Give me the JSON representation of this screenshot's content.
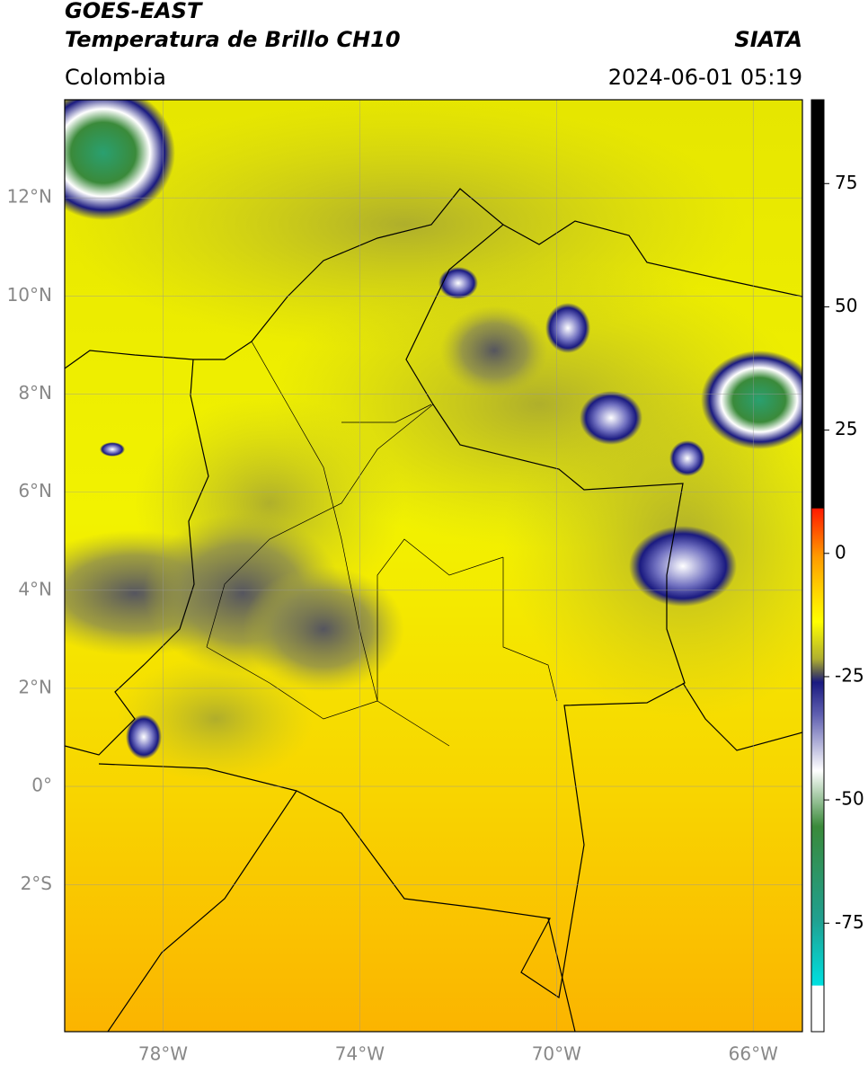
{
  "header": {
    "satellite": "GOES-EAST",
    "product": "Temperatura de Brillo CH10",
    "organization": "SIATA",
    "region": "Colombia",
    "datetime": "2024-06-01 05:19"
  },
  "map": {
    "lonlim": [
      -80,
      -65
    ],
    "latlim": [
      -5,
      14
    ],
    "lon_ticks": [
      {
        "value": -78,
        "label": "78°W"
      },
      {
        "value": -74,
        "label": "74°W"
      },
      {
        "value": -70,
        "label": "70°W"
      },
      {
        "value": -66,
        "label": "66°W"
      }
    ],
    "lat_ticks": [
      {
        "value": 12,
        "label": "12°N"
      },
      {
        "value": 10,
        "label": "10°N"
      },
      {
        "value": 8,
        "label": "8°N"
      },
      {
        "value": 6,
        "label": "6°N"
      },
      {
        "value": 4,
        "label": "4°N"
      },
      {
        "value": 2,
        "label": "2°N"
      },
      {
        "value": 0,
        "label": "0°"
      },
      {
        "value": -2,
        "label": "2°S"
      }
    ],
    "grid": true
  },
  "colorbar": {
    "lim": [
      -97,
      92
    ],
    "ticks": [
      75,
      50,
      25,
      0,
      -25,
      -50,
      -75
    ]
  }
}
